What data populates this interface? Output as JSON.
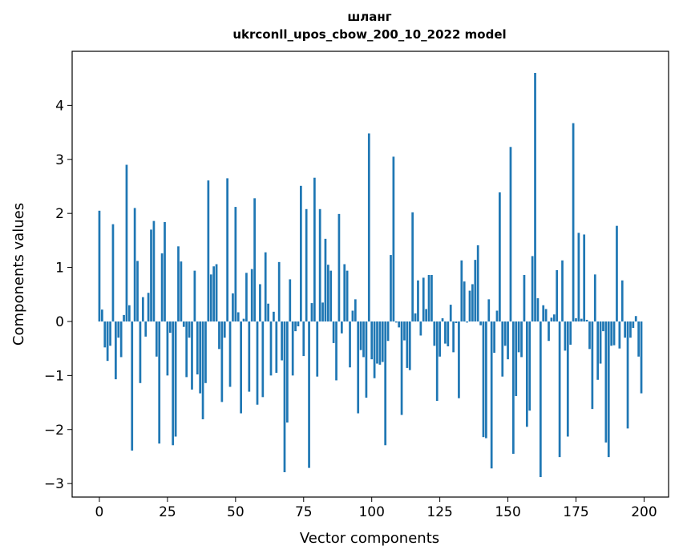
{
  "chart_data": {
    "type": "bar",
    "title": "шланг",
    "subtitle": "ukrconll_upos_cbow_200_10_2022 model",
    "xlabel": "Vector components",
    "ylabel": "Components values",
    "xlim": [
      -10,
      209
    ],
    "ylim": [
      -3.25,
      5.0
    ],
    "xticks": [
      0,
      25,
      50,
      75,
      100,
      125,
      150,
      175,
      200
    ],
    "yticks": [
      -3,
      -2,
      -1,
      0,
      1,
      2,
      3,
      4
    ],
    "bar_color": "#1f77b4",
    "grid": false,
    "x": [
      0,
      1,
      2,
      3,
      4,
      5,
      6,
      7,
      8,
      9,
      10,
      11,
      12,
      13,
      14,
      15,
      16,
      17,
      18,
      19,
      20,
      21,
      22,
      23,
      24,
      25,
      26,
      27,
      28,
      29,
      30,
      31,
      32,
      33,
      34,
      35,
      36,
      37,
      38,
      39,
      40,
      41,
      42,
      43,
      44,
      45,
      46,
      47,
      48,
      49,
      50,
      51,
      52,
      53,
      54,
      55,
      56,
      57,
      58,
      59,
      60,
      61,
      62,
      63,
      64,
      65,
      66,
      67,
      68,
      69,
      70,
      71,
      72,
      73,
      74,
      75,
      76,
      77,
      78,
      79,
      80,
      81,
      82,
      83,
      84,
      85,
      86,
      87,
      88,
      89,
      90,
      91,
      92,
      93,
      94,
      95,
      96,
      97,
      98,
      99,
      100,
      101,
      102,
      103,
      104,
      105,
      106,
      107,
      108,
      109,
      110,
      111,
      112,
      113,
      114,
      115,
      116,
      117,
      118,
      119,
      120,
      121,
      122,
      123,
      124,
      125,
      126,
      127,
      128,
      129,
      130,
      131,
      132,
      133,
      134,
      135,
      136,
      137,
      138,
      139,
      140,
      141,
      142,
      143,
      144,
      145,
      146,
      147,
      148,
      149,
      150,
      151,
      152,
      153,
      154,
      155,
      156,
      157,
      158,
      159,
      160,
      161,
      162,
      163,
      164,
      165,
      166,
      167,
      168,
      169,
      170,
      171,
      172,
      173,
      174,
      175,
      176,
      177,
      178,
      179,
      180,
      181,
      182,
      183,
      184,
      185,
      186,
      187,
      188,
      189,
      190,
      191,
      192,
      193,
      194,
      195,
      196,
      197,
      198,
      199
    ],
    "values": [
      2.05,
      0.22,
      -0.48,
      -0.73,
      -0.45,
      1.8,
      -1.07,
      -0.3,
      -0.66,
      0.12,
      2.9,
      0.3,
      -2.39,
      2.1,
      1.12,
      -1.14,
      0.45,
      -0.28,
      0.53,
      1.7,
      1.86,
      -0.65,
      -2.26,
      1.26,
      1.84,
      -1.0,
      -0.21,
      -2.29,
      -2.13,
      1.39,
      1.11,
      -0.1,
      -1.03,
      -0.3,
      -1.26,
      0.94,
      -0.98,
      -1.33,
      -1.81,
      -1.14,
      2.61,
      0.87,
      1.02,
      1.06,
      -0.51,
      -1.49,
      -0.3,
      2.65,
      -1.21,
      0.52,
      2.12,
      0.17,
      -1.7,
      0.05,
      0.9,
      -1.3,
      0.97,
      2.28,
      -1.54,
      0.69,
      -1.4,
      1.28,
      0.33,
      -1.0,
      0.18,
      -0.95,
      1.1,
      -0.72,
      -2.79,
      -1.87,
      0.78,
      -1.0,
      -0.18,
      -0.09,
      2.51,
      -0.64,
      2.08,
      -2.71,
      0.34,
      2.66,
      -1.02,
      2.08,
      0.35,
      1.53,
      1.05,
      0.94,
      -0.4,
      -1.09,
      1.99,
      -0.22,
      1.06,
      0.94,
      -0.85,
      0.2,
      0.41,
      -1.7,
      -0.53,
      -0.66,
      -1.41,
      3.48,
      -0.7,
      -1.05,
      -0.78,
      -0.8,
      -0.75,
      -2.29,
      -0.36,
      1.23,
      3.05,
      -0.02,
      -0.11,
      -1.73,
      -0.35,
      -0.86,
      -0.9,
      2.02,
      0.15,
      0.76,
      -0.26,
      0.81,
      0.23,
      0.86,
      0.86,
      -0.45,
      -1.47,
      -0.65,
      0.06,
      -0.41,
      -0.46,
      0.31,
      -0.57,
      -0.03,
      -1.42,
      1.13,
      0.74,
      -0.02,
      0.57,
      0.69,
      1.14,
      1.41,
      -0.07,
      -2.14,
      -2.16,
      0.41,
      -2.72,
      -0.58,
      0.2,
      2.39,
      -1.02,
      -0.45,
      -0.7,
      3.23,
      -2.45,
      -1.38,
      -0.57,
      -0.66,
      0.86,
      -1.95,
      -1.65,
      1.21,
      4.6,
      0.43,
      -2.88,
      0.3,
      0.23,
      -0.36,
      0.07,
      0.13,
      0.95,
      -2.51,
      1.13,
      -0.54,
      -2.13,
      -0.43,
      3.67,
      0.06,
      1.64,
      0.05,
      1.61,
      0.03,
      -0.51,
      -1.62,
      0.87,
      -1.08,
      -0.78,
      -0.18,
      -2.24,
      -2.51,
      -0.45,
      -0.44,
      1.77,
      -0.5,
      0.76,
      -0.3,
      -1.98,
      -0.3,
      -0.12,
      0.1,
      -0.65,
      -1.33
    ]
  }
}
